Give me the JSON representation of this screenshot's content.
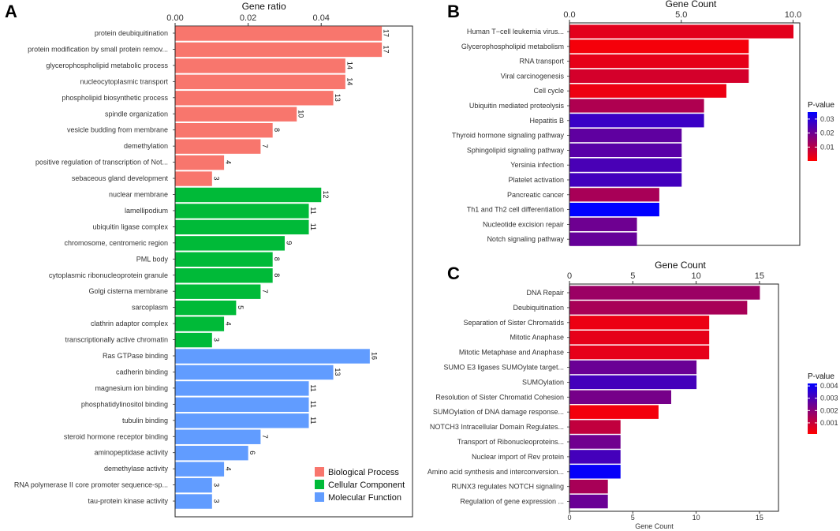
{
  "figure": {
    "background": "#ffffff"
  },
  "panels": {
    "A": {
      "letter": "A"
    },
    "B": {
      "letter": "B"
    },
    "C": {
      "letter": "C"
    }
  },
  "chart_data": [
    {
      "id": "A",
      "type": "bar",
      "orientation": "horizontal",
      "title": "",
      "xlabel": "Gene ratio",
      "xlabel_position": "top",
      "xlim": [
        0,
        0.065
      ],
      "xticks": [
        0.0,
        0.02,
        0.04
      ],
      "xtick_labels": [
        "0.00",
        "0.02",
        "0.04"
      ],
      "groups": [
        {
          "name": "Biological Process",
          "color": "#F8766D"
        },
        {
          "name": "Cellular Component",
          "color": "#00BA38"
        },
        {
          "name": "Molecular Function",
          "color": "#619CFF"
        }
      ],
      "legend": {
        "position": "bottom-right"
      },
      "bars": [
        {
          "label": "protein deubiquitination",
          "ratio": 0.0565,
          "count": 17,
          "group": 0
        },
        {
          "label": "protein modification by small protein remov...",
          "ratio": 0.0565,
          "count": 17,
          "group": 0
        },
        {
          "label": "glycerophospholipid metabolic process",
          "ratio": 0.0465,
          "count": 14,
          "group": 0
        },
        {
          "label": "nucleocytoplasmic transport",
          "ratio": 0.0465,
          "count": 14,
          "group": 0
        },
        {
          "label": "phospholipid biosynthetic process",
          "ratio": 0.0432,
          "count": 13,
          "group": 0
        },
        {
          "label": "spindle organization",
          "ratio": 0.0332,
          "count": 10,
          "group": 0
        },
        {
          "label": "vesicle budding from membrane",
          "ratio": 0.0266,
          "count": 8,
          "group": 0
        },
        {
          "label": "demethylation",
          "ratio": 0.0233,
          "count": 7,
          "group": 0
        },
        {
          "label": "positive regulation of transcription of Not...",
          "ratio": 0.0133,
          "count": 4,
          "group": 0
        },
        {
          "label": "sebaceous gland development",
          "ratio": 0.01,
          "count": 3,
          "group": 0
        },
        {
          "label": "nuclear membrane",
          "ratio": 0.0399,
          "count": 12,
          "group": 1
        },
        {
          "label": "lamellipodium",
          "ratio": 0.0365,
          "count": 11,
          "group": 1
        },
        {
          "label": "ubiquitin ligase complex",
          "ratio": 0.0365,
          "count": 11,
          "group": 1
        },
        {
          "label": "chromosome, centromeric region",
          "ratio": 0.0299,
          "count": 9,
          "group": 1
        },
        {
          "label": "PML body",
          "ratio": 0.0266,
          "count": 8,
          "group": 1
        },
        {
          "label": "cytoplasmic ribonucleoprotein granule",
          "ratio": 0.0266,
          "count": 8,
          "group": 1
        },
        {
          "label": "Golgi cisterna membrane",
          "ratio": 0.0233,
          "count": 7,
          "group": 1
        },
        {
          "label": "sarcoplasm",
          "ratio": 0.0166,
          "count": 5,
          "group": 1
        },
        {
          "label": "clathrin adaptor complex",
          "ratio": 0.0133,
          "count": 4,
          "group": 1
        },
        {
          "label": "transcriptionally active chromatin",
          "ratio": 0.01,
          "count": 3,
          "group": 1
        },
        {
          "label": "Ras GTPase binding",
          "ratio": 0.0532,
          "count": 16,
          "group": 2
        },
        {
          "label": "cadherin binding",
          "ratio": 0.0432,
          "count": 13,
          "group": 2
        },
        {
          "label": "magnesium ion binding",
          "ratio": 0.0365,
          "count": 11,
          "group": 2
        },
        {
          "label": "phosphatidylinositol binding",
          "ratio": 0.0365,
          "count": 11,
          "group": 2
        },
        {
          "label": "tubulin binding",
          "ratio": 0.0365,
          "count": 11,
          "group": 2
        },
        {
          "label": "steroid hormone receptor binding",
          "ratio": 0.0233,
          "count": 7,
          "group": 2
        },
        {
          "label": "aminopeptidase activity",
          "ratio": 0.0199,
          "count": 6,
          "group": 2
        },
        {
          "label": "demethylase activity",
          "ratio": 0.0133,
          "count": 4,
          "group": 2
        },
        {
          "label": "RNA polymerase II core promoter sequence-sp...",
          "ratio": 0.01,
          "count": 3,
          "group": 2
        },
        {
          "label": "tau-protein kinase activity",
          "ratio": 0.01,
          "count": 3,
          "group": 2
        }
      ]
    },
    {
      "id": "B",
      "type": "bar",
      "orientation": "horizontal",
      "title": "",
      "xlabel": "Gene Count",
      "xlabel_position": "top",
      "xlim": [
        0,
        10.3
      ],
      "xticks": [
        0,
        5,
        10
      ],
      "xtick_labels": [
        "0.0",
        "5.0",
        "10.0"
      ],
      "colorbar": {
        "title": "P-value",
        "low_color": "#ff0000",
        "high_color": "#0000ff",
        "range": [
          0.0001,
          0.035
        ],
        "ticks": [
          0.01,
          0.02,
          0.03
        ],
        "tick_labels": [
          "0.01",
          "0.02",
          "0.03"
        ]
      },
      "bars": [
        {
          "label": "Human T−cell leukemia virus...",
          "count": 10,
          "pvalue": 0.004
        },
        {
          "label": "Glycerophospholipid metabolism",
          "count": 8,
          "pvalue": 0.0015
        },
        {
          "label": "RNA transport",
          "count": 8,
          "pvalue": 0.0035
        },
        {
          "label": "Viral carcinogenesis",
          "count": 8,
          "pvalue": 0.006
        },
        {
          "label": "Cell cycle",
          "count": 7,
          "pvalue": 0.0025
        },
        {
          "label": "Ubiquitin mediated proteolysis",
          "count": 6,
          "pvalue": 0.011
        },
        {
          "label": "Hepatitis B",
          "count": 6,
          "pvalue": 0.027
        },
        {
          "label": "Thyroid hormone signaling pathway",
          "count": 5,
          "pvalue": 0.022
        },
        {
          "label": "Sphingolipid signaling pathway",
          "count": 5,
          "pvalue": 0.023
        },
        {
          "label": "Yersinia infection",
          "count": 5,
          "pvalue": 0.025
        },
        {
          "label": "Platelet activation",
          "count": 5,
          "pvalue": 0.026
        },
        {
          "label": "Pancreatic cancer",
          "count": 4,
          "pvalue": 0.012
        },
        {
          "label": "Th1 and Th2 cell differentiation",
          "count": 4,
          "pvalue": 0.035
        },
        {
          "label": "Nucleotide excision repair",
          "count": 3,
          "pvalue": 0.02
        },
        {
          "label": "Notch signaling pathway",
          "count": 3,
          "pvalue": 0.021
        }
      ]
    },
    {
      "id": "C",
      "type": "bar",
      "orientation": "horizontal",
      "title": "",
      "xlabel": "Gene Count",
      "xlabel_position": "top",
      "xlabel_bottom": "Gene Count",
      "xlim": [
        0,
        16.5
      ],
      "xticks": [
        0,
        5,
        10,
        15
      ],
      "xtick_labels": [
        "0",
        "5",
        "10",
        "15"
      ],
      "colorbar": {
        "title": "P-value",
        "low_color": "#ff0000",
        "high_color": "#0000ff",
        "range": [
          0.0001,
          0.0042
        ],
        "ticks": [
          0.001,
          0.002,
          0.003,
          0.004
        ],
        "tick_labels": [
          "0.001",
          "0.002",
          "0.003",
          "0.004"
        ]
      },
      "bars": [
        {
          "label": "DNA Repair",
          "count": 15,
          "pvalue": 0.0017
        },
        {
          "label": "Deubiquitination",
          "count": 14,
          "pvalue": 0.0015
        },
        {
          "label": "Separation of Sister Chromatids",
          "count": 11,
          "pvalue": 0.0004
        },
        {
          "label": "Mitotic Anaphase",
          "count": 11,
          "pvalue": 0.0005
        },
        {
          "label": "Mitotic Metaphase and Anaphase",
          "count": 11,
          "pvalue": 0.0005
        },
        {
          "label": "SUMO E3 ligases SUMOylate target...",
          "count": 10,
          "pvalue": 0.0025
        },
        {
          "label": "SUMOylation",
          "count": 10,
          "pvalue": 0.0031
        },
        {
          "label": "Resolution of Sister Chromatid Cohesion",
          "count": 8,
          "pvalue": 0.0023
        },
        {
          "label": "SUMOylation of DNA damage response...",
          "count": 7,
          "pvalue": 0.0003
        },
        {
          "label": "NOTCH3 Intracellular Domain Regulates...",
          "count": 4,
          "pvalue": 0.0011
        },
        {
          "label": "Transport of Ribonucleoproteins...",
          "count": 4,
          "pvalue": 0.0024
        },
        {
          "label": "Nuclear import of Rev protein",
          "count": 4,
          "pvalue": 0.0031
        },
        {
          "label": "Amino acid synthesis and interconversion...",
          "count": 4,
          "pvalue": 0.0041
        },
        {
          "label": "RUNX3 regulates NOTCH signaling",
          "count": 3,
          "pvalue": 0.0015
        },
        {
          "label": "Regulation of gene expression ...",
          "count": 3,
          "pvalue": 0.0025
        }
      ]
    }
  ]
}
